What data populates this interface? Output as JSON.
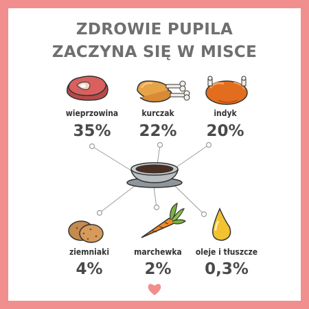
{
  "title": {
    "line1": "ZDROWIE PUPILA",
    "line2": "ZACZYNA SIĘ W MISCE"
  },
  "items": [
    {
      "label": "wieprzowina",
      "percent": "35%",
      "icon": "pork-meat-icon"
    },
    {
      "label": "kurczak",
      "percent": "22%",
      "icon": "chicken-icon"
    },
    {
      "label": "indyk",
      "percent": "20%",
      "icon": "turkey-icon"
    },
    {
      "label": "ziemniaki",
      "percent": "4%",
      "icon": "potato-icon"
    },
    {
      "label": "marchewka",
      "percent": "2%",
      "icon": "carrot-icon"
    },
    {
      "label": "oleje i tłuszcze",
      "percent": "0,3%",
      "icon": "oil-drop-icon"
    }
  ],
  "colors": {
    "frame": "#f08f8d",
    "title": "#6f6f6f",
    "heart": "#f08f8d"
  },
  "decor": {
    "center_icon": "bowl-icon",
    "footer_icon": "heart-icon"
  }
}
